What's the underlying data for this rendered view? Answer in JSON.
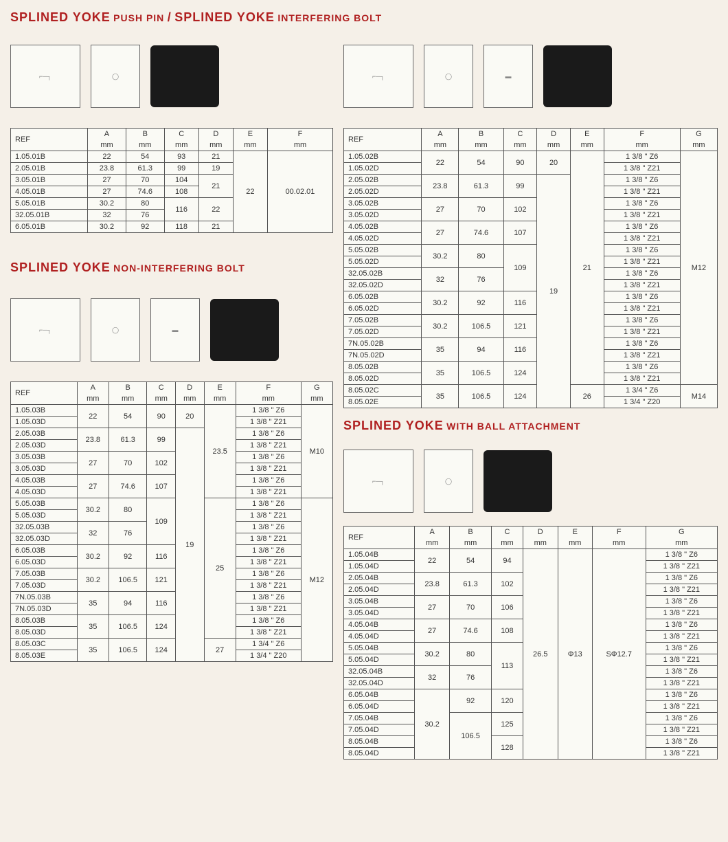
{
  "titles": {
    "t1a": "SPLINED YOKE",
    "t1b": "PUSH PIN",
    "t1c": "SPLINED YOKE",
    "t1d": "INTERFERING BOLT",
    "t2a": "SPLINED YOKE",
    "t2b": "NON-INTERFERING BOLT",
    "t3a": "SPLINED YOKE",
    "t3b": "WITH BALL ATTACHMENT"
  },
  "hdr": {
    "ref": "REF",
    "a": "A",
    "b": "B",
    "c": "C",
    "d": "D",
    "e": "E",
    "f": "F",
    "g": "G",
    "mm": "mm"
  },
  "table1": {
    "r1": {
      "ref": "1.05.01B",
      "a": "22",
      "b": "54",
      "c": "93",
      "d": "21"
    },
    "r2": {
      "ref": "2.05.01B",
      "a": "23.8",
      "b": "61.3",
      "c": "99",
      "d": "19"
    },
    "r3": {
      "ref": "3.05.01B",
      "a": "27",
      "b": "70",
      "c": "104"
    },
    "r4": {
      "ref": "4.05.01B",
      "a": "27",
      "b": "74.6",
      "c": "108"
    },
    "r5": {
      "ref": "5.05.01B",
      "a": "30.2",
      "b": "80"
    },
    "r6": {
      "ref": "32.05.01B",
      "a": "32",
      "b": "76"
    },
    "r7": {
      "ref": "6.05.01B",
      "a": "30.2",
      "b": "92",
      "c": "118",
      "d": "21"
    },
    "d34": "21",
    "c56": "116",
    "d56": "22",
    "e": "22",
    "f": "00.02.01"
  },
  "table2": {
    "r": [
      {
        "ref": "1.05.02B",
        "f": "1 3/8 \" Z6"
      },
      {
        "ref": "1.05.02D",
        "f": "1 3/8 \" Z21"
      },
      {
        "ref": "2.05.02B",
        "f": "1 3/8 \" Z6"
      },
      {
        "ref": "2.05.02D",
        "f": "1 3/8 \" Z21"
      },
      {
        "ref": "3.05.02B",
        "f": "1 3/8 \" Z6"
      },
      {
        "ref": "3.05.02D",
        "f": "1 3/8 \" Z21"
      },
      {
        "ref": "4.05.02B",
        "f": "1 3/8 \" Z6"
      },
      {
        "ref": "4.05.02D",
        "f": "1 3/8 \" Z21"
      },
      {
        "ref": "5.05.02B",
        "f": "1 3/8 \" Z6"
      },
      {
        "ref": "5.05.02D",
        "f": "1 3/8 \" Z21"
      },
      {
        "ref": "32.05.02B",
        "f": "1 3/8 \" Z6"
      },
      {
        "ref": "32.05.02D",
        "f": "1 3/8 \" Z21"
      },
      {
        "ref": "6.05.02B",
        "f": "1 3/8 \" Z6"
      },
      {
        "ref": "6.05.02D",
        "f": "1 3/8 \" Z21"
      },
      {
        "ref": "7.05.02B",
        "f": "1 3/8 \" Z6"
      },
      {
        "ref": "7.05.02D",
        "f": "1 3/8 \" Z21"
      },
      {
        "ref": "7N.05.02B",
        "f": "1 3/8 \" Z6"
      },
      {
        "ref": "7N.05.02D",
        "f": "1 3/8 \" Z21"
      },
      {
        "ref": "8.05.02B",
        "f": "1 3/8 \" Z6"
      },
      {
        "ref": "8.05.02D",
        "f": "1 3/8 \" Z21"
      },
      {
        "ref": "8.05.02C",
        "f": "1 3/4 \" Z6"
      },
      {
        "ref": "8.05.02E",
        "f": "1 3/4 \" Z20"
      }
    ],
    "a": [
      "22",
      "23.8",
      "27",
      "27",
      "30.2",
      "32",
      "30.2",
      "30.2",
      "35",
      "35",
      "35"
    ],
    "b": [
      "54",
      "61.3",
      "70",
      "74.6",
      "80",
      "76",
      "92",
      "106.5",
      "94",
      "106.5",
      "106.5"
    ],
    "c": [
      "90",
      "99",
      "102",
      "107",
      "109",
      "116",
      "121",
      "116",
      "124",
      "124"
    ],
    "d": [
      "20",
      "19"
    ],
    "e": [
      "21",
      "26"
    ],
    "g": [
      "M12",
      "M14"
    ]
  },
  "table3": {
    "r": [
      {
        "ref": "1.05.03B",
        "f": "1 3/8 \" Z6"
      },
      {
        "ref": "1.05.03D",
        "f": "1 3/8 \" Z21"
      },
      {
        "ref": "2.05.03B",
        "f": "1 3/8 \" Z6"
      },
      {
        "ref": "2.05.03D",
        "f": "1 3/8 \" Z21"
      },
      {
        "ref": "3.05.03B",
        "f": "1 3/8 \" Z6"
      },
      {
        "ref": "3.05.03D",
        "f": "1 3/8 \" Z21"
      },
      {
        "ref": "4.05.03B",
        "f": "1 3/8 \" Z6"
      },
      {
        "ref": "4.05.03D",
        "f": "1 3/8 \" Z21"
      },
      {
        "ref": "5.05.03B",
        "f": "1 3/8 \" Z6"
      },
      {
        "ref": "5.05.03D",
        "f": "1 3/8 \" Z21"
      },
      {
        "ref": "32.05.03B",
        "f": "1 3/8 \" Z6"
      },
      {
        "ref": "32.05.03D",
        "f": "1 3/8 \" Z21"
      },
      {
        "ref": "6.05.03B",
        "f": "1 3/8 \" Z6"
      },
      {
        "ref": "6.05.03D",
        "f": "1 3/8 \" Z21"
      },
      {
        "ref": "7.05.03B",
        "f": "1 3/8 \" Z6"
      },
      {
        "ref": "7.05.03D",
        "f": "1 3/8 \" Z21"
      },
      {
        "ref": "7N.05.03B",
        "f": "1 3/8 \" Z6"
      },
      {
        "ref": "7N.05.03D",
        "f": "1 3/8 \" Z21"
      },
      {
        "ref": "8.05.03B",
        "f": "1 3/8 \" Z6"
      },
      {
        "ref": "8.05.03D",
        "f": "1 3/8 \" Z21"
      },
      {
        "ref": "8.05.03C",
        "f": "1 3/4 \" Z6"
      },
      {
        "ref": "8.05.03E",
        "f": "1 3/4 \" Z20"
      }
    ],
    "a": [
      "22",
      "23.8",
      "27",
      "27",
      "30.2",
      "32",
      "30.2",
      "30.2",
      "35",
      "35",
      "35"
    ],
    "b": [
      "54",
      "61.3",
      "70",
      "74.6",
      "80",
      "76",
      "92",
      "106.5",
      "94",
      "106.5",
      "106.5"
    ],
    "c": [
      "90",
      "99",
      "102",
      "107",
      "109",
      "116",
      "121",
      "116",
      "124",
      "124"
    ],
    "d": [
      "20",
      "19"
    ],
    "e": [
      "23.5",
      "25",
      "27"
    ],
    "g": [
      "M10",
      "M12"
    ]
  },
  "table4": {
    "r": [
      {
        "ref": "1.05.04B",
        "g": "1 3/8 \" Z6"
      },
      {
        "ref": "1.05.04D",
        "g": "1 3/8 \" Z21"
      },
      {
        "ref": "2.05.04B",
        "g": "1 3/8 \" Z6"
      },
      {
        "ref": "2.05.04D",
        "g": "1 3/8 \" Z21"
      },
      {
        "ref": "3.05.04B",
        "g": "1 3/8 \" Z6"
      },
      {
        "ref": "3.05.04D",
        "g": "1 3/8 \" Z21"
      },
      {
        "ref": "4.05.04B",
        "g": "1 3/8 \" Z6"
      },
      {
        "ref": "4.05.04D",
        "g": "1 3/8 \" Z21"
      },
      {
        "ref": "5.05.04B",
        "g": "1 3/8 \" Z6"
      },
      {
        "ref": "5.05.04D",
        "g": "1 3/8 \" Z21"
      },
      {
        "ref": "32.05.04B",
        "g": "1 3/8 \" Z6"
      },
      {
        "ref": "32.05.04D",
        "g": "1 3/8 \" Z21"
      },
      {
        "ref": "6.05.04B",
        "g": "1 3/8 \" Z6"
      },
      {
        "ref": "6.05.04D",
        "g": "1 3/8 \" Z21"
      },
      {
        "ref": "7.05.04B",
        "g": "1 3/8 \" Z6"
      },
      {
        "ref": "7.05.04D",
        "g": "1 3/8 \" Z21"
      },
      {
        "ref": "8.05.04B",
        "g": "1 3/8 \" Z6"
      },
      {
        "ref": "8.05.04D",
        "g": "1 3/8 \" Z21"
      }
    ],
    "a": [
      "22",
      "23.8",
      "27",
      "27",
      "30.2",
      "32",
      "30.2"
    ],
    "b": [
      "54",
      "61.3",
      "70",
      "74.6",
      "80",
      "76",
      "92",
      "106.5"
    ],
    "c": [
      "94",
      "102",
      "106",
      "108",
      "113",
      "120",
      "125",
      "128"
    ],
    "d": "26.5",
    "e": "Φ13",
    "f": "SΦ12.7"
  }
}
